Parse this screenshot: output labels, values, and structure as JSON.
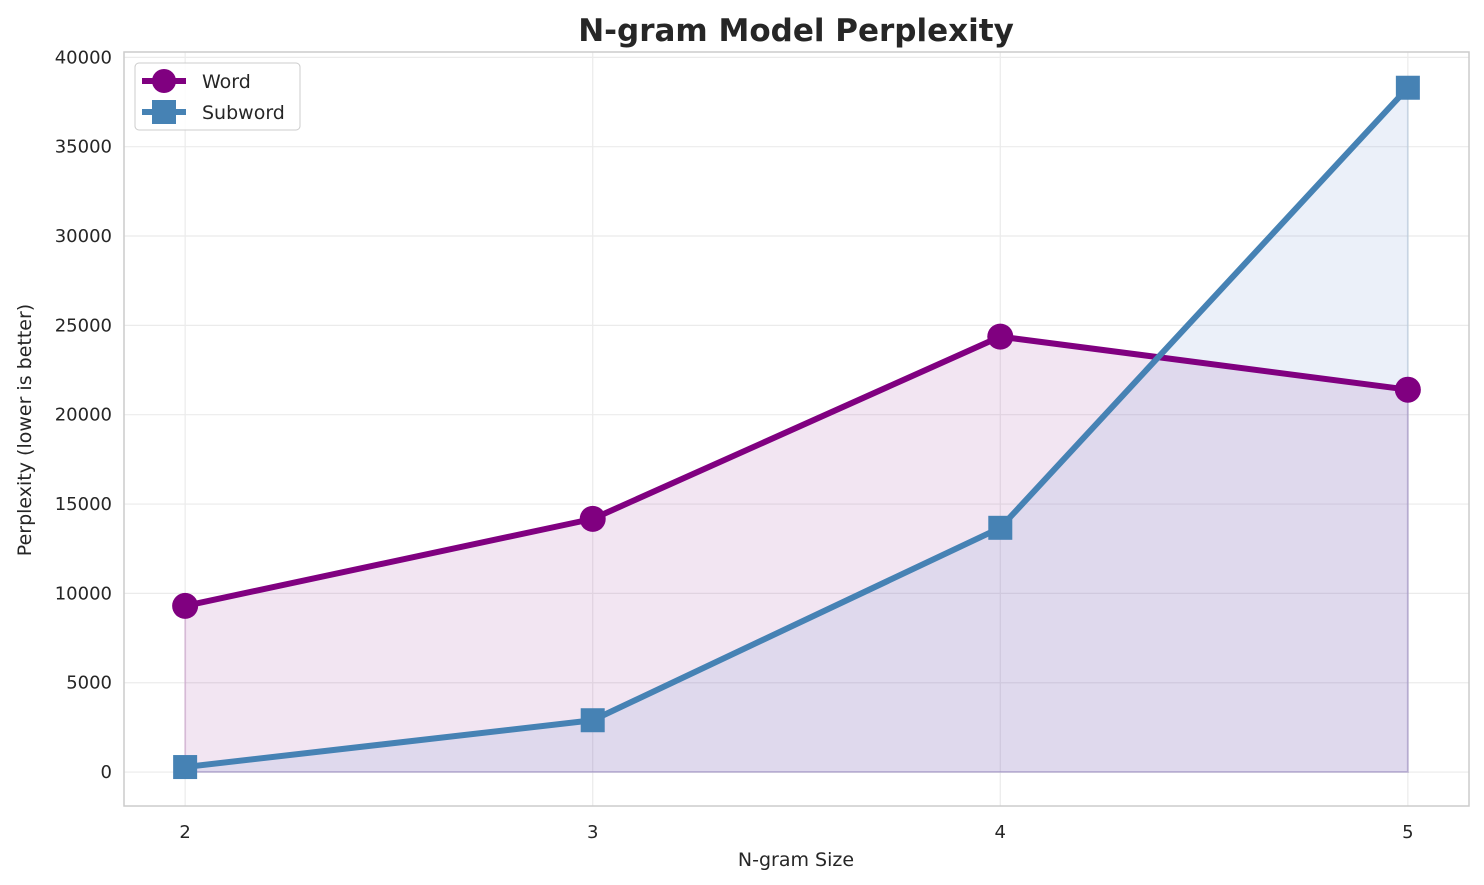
{
  "chart_data": {
    "type": "line",
    "title": "N-gram Model Perplexity",
    "xlabel": "N-gram Size",
    "ylabel": "Perplexity (lower is better)",
    "x": [
      2,
      3,
      4,
      5
    ],
    "x_ticks": [
      "2",
      "3",
      "4",
      "5"
    ],
    "y_ticks": [
      "0",
      "5000",
      "10000",
      "15000",
      "20000",
      "25000",
      "30000",
      "35000",
      "40000"
    ],
    "xlim": [
      1.85,
      5.15
    ],
    "ylim": [
      -1900,
      40300
    ],
    "grid": true,
    "legend_position": "top-left",
    "series": [
      {
        "name": "Word",
        "values": [
          9300,
          14170,
          24370,
          21400
        ],
        "color": "#800080",
        "marker": "circle",
        "fill": true
      },
      {
        "name": "Subword",
        "values": [
          280,
          2900,
          13670,
          38300
        ],
        "color": "#4682b4",
        "marker": "square",
        "fill": true
      }
    ]
  }
}
